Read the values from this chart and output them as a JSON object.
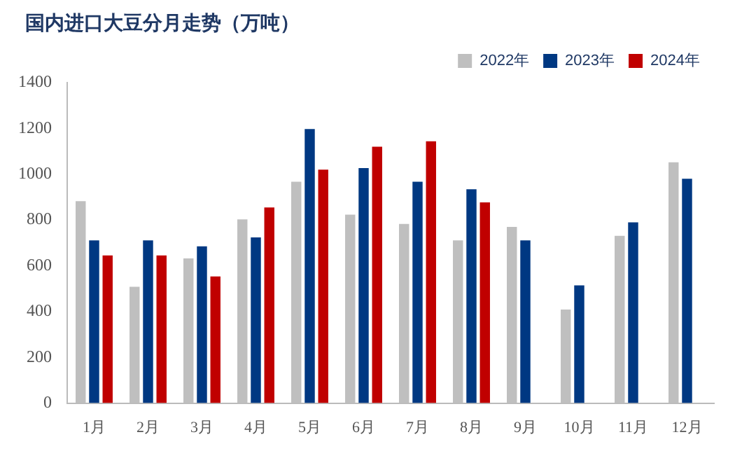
{
  "chart_data": {
    "type": "bar",
    "title": "国内进口大豆分月走势（万吨）",
    "categories": [
      "1月",
      "2月",
      "3月",
      "4月",
      "5月",
      "6月",
      "7月",
      "8月",
      "9月",
      "10月",
      "11月",
      "12月"
    ],
    "series": [
      {
        "name": "2022年",
        "color": "#bfbfbf",
        "values": [
          882,
          508,
          632,
          803,
          967,
          823,
          783,
          711,
          770,
          409,
          731,
          1052
        ]
      },
      {
        "name": "2023年",
        "color": "#003882",
        "values": [
          711,
          711,
          685,
          724,
          1197,
          1027,
          967,
          934,
          711,
          514,
          790,
          980
        ]
      },
      {
        "name": "2024年",
        "color": "#c00000",
        "values": [
          645,
          645,
          553,
          855,
          1020,
          1120,
          1144,
          877,
          null,
          null,
          null,
          null
        ]
      }
    ],
    "ylim": [
      0,
      1400
    ],
    "yticks": [
      0,
      200,
      400,
      600,
      800,
      1000,
      1200,
      1400
    ],
    "grid": false,
    "legend": "top right"
  }
}
